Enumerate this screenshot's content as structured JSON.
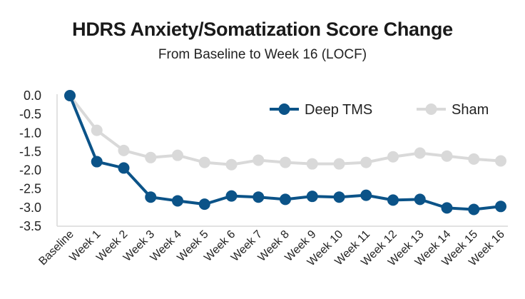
{
  "chart_data": {
    "type": "line",
    "title": "HDRS Anxiety/Somatization Score Change",
    "subtitle": "From Baseline to Week 16 (LOCF)",
    "xlabel": "",
    "ylabel": "",
    "ylim": [
      -3.5,
      0.0
    ],
    "yticks": [
      "0.0",
      "-0.5",
      "-1.0",
      "-1.5",
      "-2.0",
      "-2.5",
      "-3.0",
      "-3.5"
    ],
    "ytick_values": [
      0.0,
      -0.5,
      -1.0,
      -1.5,
      -2.0,
      -2.5,
      -3.0,
      -3.5
    ],
    "grid": false,
    "legend_position": "top-right",
    "categories": [
      "Baseline",
      "Week 1",
      "Week 2",
      "Week 3",
      "Week 4",
      "Week 5",
      "Week 6",
      "Week 7",
      "Week 8",
      "Week 9",
      "Week 10",
      "Week 11",
      "Week 12",
      "Week 13",
      "Week 14",
      "Week 15",
      "Week 16"
    ],
    "series": [
      {
        "name": "Deep TMS",
        "color": "#0b5388",
        "values": [
          0.0,
          -1.77,
          -1.94,
          -2.72,
          -2.82,
          -2.91,
          -2.69,
          -2.72,
          -2.78,
          -2.7,
          -2.72,
          -2.67,
          -2.8,
          -2.78,
          -3.01,
          -3.05,
          -2.97
        ]
      },
      {
        "name": "Sham",
        "color": "#d9d9d9",
        "values": [
          0.0,
          -0.93,
          -1.47,
          -1.66,
          -1.6,
          -1.79,
          -1.85,
          -1.73,
          -1.79,
          -1.83,
          -1.83,
          -1.79,
          -1.64,
          -1.54,
          -1.62,
          -1.7,
          -1.75
        ]
      }
    ]
  }
}
